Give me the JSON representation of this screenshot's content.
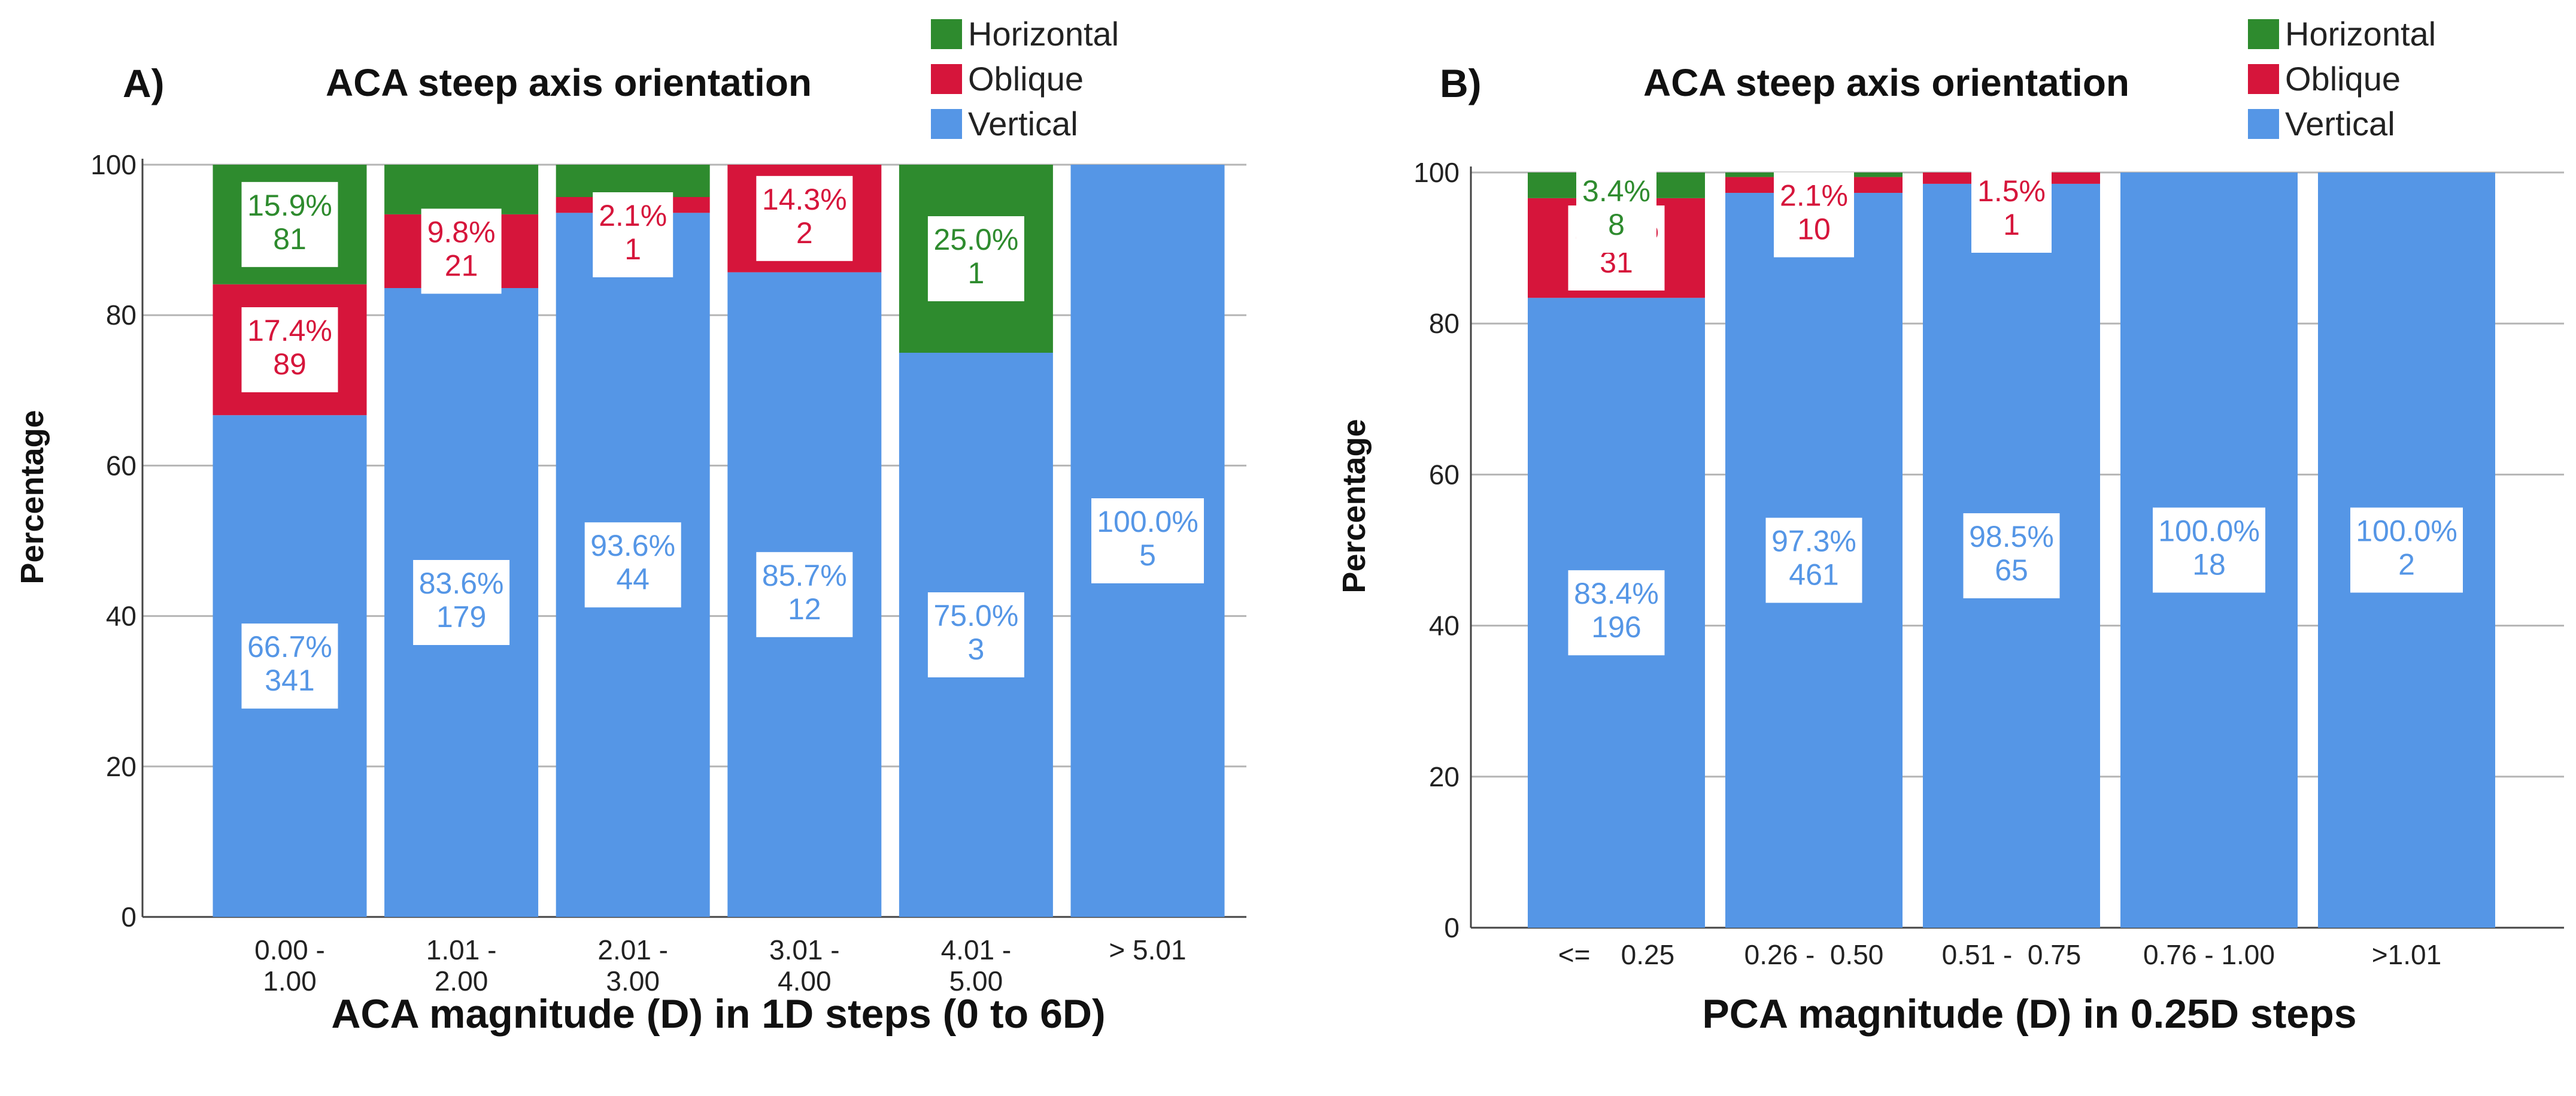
{
  "chart_data": [
    {
      "type": "bar",
      "stacked": true,
      "panel_label": "A)",
      "title": "ACA steep axis orientation",
      "xlabel": "ACA magnitude (D) in 1D steps (0 to 6D)",
      "ylabel": "Percentage",
      "ylim": [
        0,
        100
      ],
      "yticks": [
        "0",
        "20",
        "40",
        "60",
        "80",
        "100"
      ],
      "grid": true,
      "legend_placement": "top-right",
      "categories": [
        "0.00 -\n1.00",
        "1.01 -\n2.00",
        "2.01 -\n3.00",
        "3.01 -\n4.00",
        "4.01 -\n5.00",
        "> 5.01"
      ],
      "series": [
        {
          "name": "Vertical",
          "color": "#5596e6",
          "values": [
            66.7,
            83.6,
            93.6,
            85.7,
            75.0,
            100.0
          ],
          "labels": [
            "66.7%\n341",
            "83.6%\n179",
            "93.6%\n44",
            "85.7%\n12",
            "75.0%\n3",
            "100.0%\n5"
          ]
        },
        {
          "name": "Oblique",
          "color": "#d6153b",
          "values": [
            17.4,
            9.8,
            2.1,
            14.3,
            0,
            0
          ],
          "labels": [
            "17.4%\n89",
            "9.8%\n21",
            "2.1%\n1",
            "14.3%\n2",
            "",
            ""
          ]
        },
        {
          "name": "Horizontal",
          "color": "#2e8b2e",
          "values": [
            15.9,
            6.6,
            4.3,
            0,
            25.0,
            0
          ],
          "labels": [
            "15.9%\n81",
            "",
            "",
            "",
            "25.0%\n1",
            ""
          ]
        }
      ]
    },
    {
      "type": "bar",
      "stacked": true,
      "panel_label": "B)",
      "title": "ACA steep axis orientation",
      "xlabel": "PCA magnitude (D) in 0.25D steps",
      "ylabel": "Percentage",
      "ylim": [
        0,
        100
      ],
      "yticks": [
        "0",
        "20",
        "40",
        "60",
        "80",
        "100"
      ],
      "grid": true,
      "legend_placement": "top-right",
      "categories": [
        "<=    0.25",
        "0.26 -  0.50",
        "0.51 -  0.75",
        "0.76 - 1.00",
        ">1.01"
      ],
      "series": [
        {
          "name": "Vertical",
          "color": "#5596e6",
          "values": [
            83.4,
            97.3,
            98.5,
            100.0,
            100.0
          ],
          "labels": [
            "83.4%\n196",
            "97.3%\n461",
            "98.5%\n65",
            "100.0%\n18",
            "100.0%\n2"
          ]
        },
        {
          "name": "Oblique",
          "color": "#d6153b",
          "values": [
            13.2,
            2.1,
            1.5,
            0,
            0
          ],
          "labels": [
            "13.2%\n31",
            "2.1%\n10",
            "1.5%\n1",
            "",
            ""
          ]
        },
        {
          "name": "Horizontal",
          "color": "#2e8b2e",
          "values": [
            3.4,
            0.6,
            0,
            0,
            0
          ],
          "labels": [
            "3.4%\n8",
            "",
            "",
            "",
            ""
          ]
        }
      ]
    }
  ]
}
